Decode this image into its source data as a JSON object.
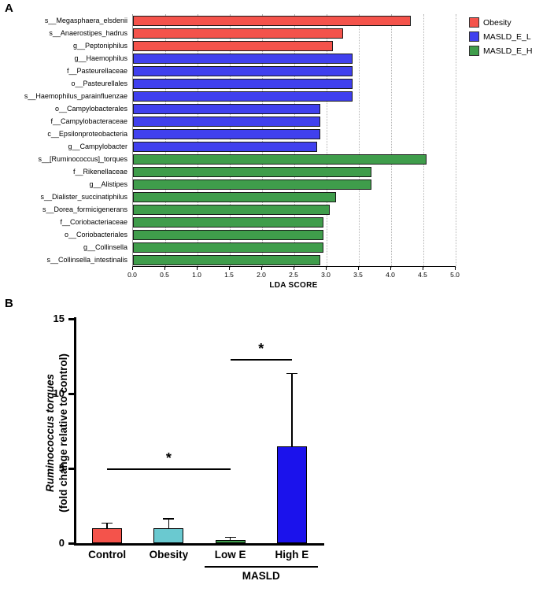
{
  "panels": {
    "a": "A",
    "b": "B"
  },
  "chart_data": [
    {
      "id": "A",
      "type": "bar",
      "orientation": "horizontal",
      "xlabel": "LDA SCORE",
      "xlim": [
        0,
        5
      ],
      "xticks": [
        "0.0",
        "0.5",
        "1.0",
        "1.5",
        "2.0",
        "2.5",
        "3.0",
        "3.5",
        "4.0",
        "4.5",
        "5.0"
      ],
      "grid": "dotted-vertical",
      "legend": [
        {
          "label": "Obesity",
          "color": "#F4534B"
        },
        {
          "label": "MASLD_E_L",
          "color": "#4040EE"
        },
        {
          "label": "MASLD_E_H",
          "color": "#3F9D4B"
        }
      ],
      "bars": [
        {
          "category": "s__Megasphaera_elsdenii",
          "value": 4.3,
          "group": "Obesity"
        },
        {
          "category": "s__Anaerostipes_hadrus",
          "value": 3.25,
          "group": "Obesity"
        },
        {
          "category": "g__Peptoniphilus",
          "value": 3.1,
          "group": "Obesity"
        },
        {
          "category": "g__Haemophilus",
          "value": 3.4,
          "group": "MASLD_E_L"
        },
        {
          "category": "f__Pasteurellaceae",
          "value": 3.4,
          "group": "MASLD_E_L"
        },
        {
          "category": "o__Pasteurellales",
          "value": 3.4,
          "group": "MASLD_E_L"
        },
        {
          "category": "s__Haemophilus_parainfluenzae",
          "value": 3.4,
          "group": "MASLD_E_L"
        },
        {
          "category": "o__Campylobacterales",
          "value": 2.9,
          "group": "MASLD_E_L"
        },
        {
          "category": "f__Campylobacteraceae",
          "value": 2.9,
          "group": "MASLD_E_L"
        },
        {
          "category": "c__Epsilonproteobacteria",
          "value": 2.9,
          "group": "MASLD_E_L"
        },
        {
          "category": "g__Campylobacter",
          "value": 2.85,
          "group": "MASLD_E_L"
        },
        {
          "category": "s__[Ruminococcus]_torques",
          "value": 4.55,
          "group": "MASLD_E_H"
        },
        {
          "category": "f__Rikenellaceae",
          "value": 3.7,
          "group": "MASLD_E_H"
        },
        {
          "category": "g__Alistipes",
          "value": 3.7,
          "group": "MASLD_E_H"
        },
        {
          "category": "s__Dialister_succinatiphilus",
          "value": 3.15,
          "group": "MASLD_E_H"
        },
        {
          "category": "s__Dorea_formicigenerans",
          "value": 3.05,
          "group": "MASLD_E_H"
        },
        {
          "category": "f__Coriobacteriaceae",
          "value": 2.95,
          "group": "MASLD_E_H"
        },
        {
          "category": "o__Coriobacteriales",
          "value": 2.95,
          "group": "MASLD_E_H"
        },
        {
          "category": "g__Collinsella",
          "value": 2.95,
          "group": "MASLD_E_H"
        },
        {
          "category": "s__Collinsella_intestinalis",
          "value": 2.9,
          "group": "MASLD_E_H"
        }
      ]
    },
    {
      "id": "B",
      "type": "bar",
      "orientation": "vertical",
      "ylabel_italic": "Ruminococcus torques",
      "ylabel_rest": "(fold change relative to control)",
      "ylim": [
        0,
        15
      ],
      "yticks": [
        0,
        5,
        10,
        15
      ],
      "bars": [
        {
          "category": "Control",
          "value": 1.0,
          "error": 0.3,
          "color": "#F4534B"
        },
        {
          "category": "Obesity",
          "value": 1.0,
          "error": 0.6,
          "color": "#6AC9D0"
        },
        {
          "category": "Low E",
          "value": 0.2,
          "error": 0.15,
          "color": "#3F9D4B"
        },
        {
          "category": "High E",
          "value": 6.5,
          "error": 4.8,
          "color": "#1B12EC"
        }
      ],
      "significance": [
        {
          "label": "*",
          "from": "Control",
          "to": "Low E",
          "y": 5.0
        },
        {
          "label": "*",
          "from": "Low E",
          "to": "High E",
          "y": 12.3
        }
      ],
      "group_bracket": {
        "label": "MASLD",
        "from": "Low E",
        "to": "High E"
      }
    }
  ]
}
